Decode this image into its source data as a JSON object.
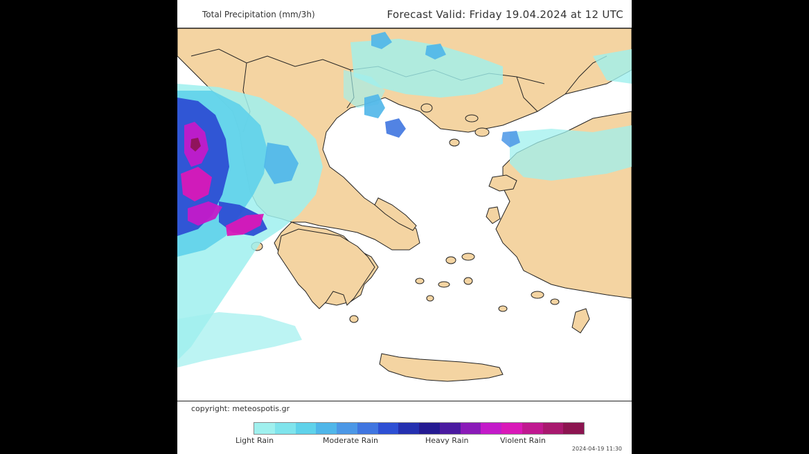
{
  "header": {
    "product_title": "Total Precipitation (mm/3h)",
    "forecast_valid": "Forecast Valid:  Friday 19.04.2024 at 12 UTC"
  },
  "footer": {
    "copyright": "copyright: meteospotis.gr",
    "timestamp": "2024-04-19 11:30"
  },
  "legend": {
    "labels": [
      "Light Rain",
      "Moderate Rain",
      "Heavy Rain",
      "Violent Rain"
    ],
    "colors": [
      "#9ff0ee",
      "#7fe4ec",
      "#5fd2ea",
      "#4fb6e9",
      "#4b97e6",
      "#3f75e0",
      "#2d4fd4",
      "#2430b0",
      "#241a92",
      "#4a1aa0",
      "#8a1ab8",
      "#c31ac9",
      "#d918b8",
      "#c01890",
      "#a8186e",
      "#8c1450"
    ]
  },
  "map": {
    "land_color": "#f4d4a2",
    "sea_color": "#ffffff",
    "border_color": "#222222"
  }
}
